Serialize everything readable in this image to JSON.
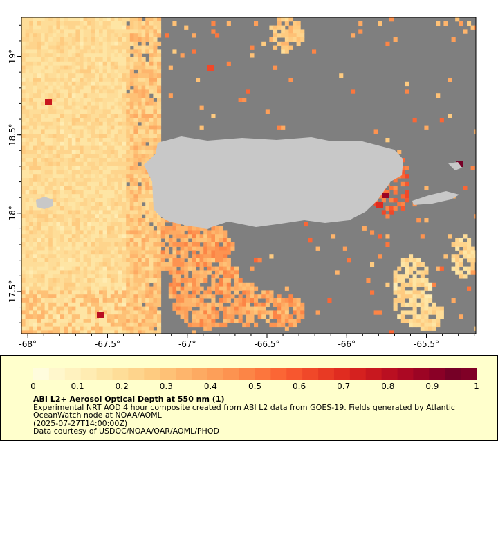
{
  "map": {
    "x_axis": {
      "ticks": [
        {
          "lon": -68.0,
          "label": "-68°"
        },
        {
          "lon": -67.5,
          "label": "-67.5°"
        },
        {
          "lon": -67.0,
          "label": "-67°"
        },
        {
          "lon": -66.5,
          "label": "-66.5°"
        },
        {
          "lon": -66.0,
          "label": "-66°"
        },
        {
          "lon": -65.5,
          "label": "-65.5°"
        }
      ]
    },
    "y_axis": {
      "ticks": [
        {
          "lat": 19.0,
          "label": "19°"
        },
        {
          "lat": 18.5,
          "label": "18.5°"
        },
        {
          "lat": 18.0,
          "label": "18°"
        },
        {
          "lat": 17.5,
          "label": "17.5°"
        }
      ]
    },
    "lon_range": [
      -68.04,
      -65.19
    ],
    "lat_range": [
      17.23,
      19.25
    ],
    "colors": {
      "land": "#c8c8c8",
      "no_data": "#7f7f7f"
    }
  },
  "legend": {
    "colorbar": {
      "min": 0,
      "max": 1,
      "tick_labels": [
        "0",
        "0.1",
        "0.2",
        "0.3",
        "0.4",
        "0.5",
        "0.6",
        "0.7",
        "0.8",
        "0.9",
        "1"
      ],
      "colors": [
        "#fffcdd",
        "#fff7cc",
        "#fff2bf",
        "#ffecb2",
        "#fee5a4",
        "#fedd98",
        "#fed48c",
        "#fecb80",
        "#fec176",
        "#feb56c",
        "#fdaa62",
        "#fd9f59",
        "#fd9350",
        "#fc8546",
        "#fc763d",
        "#fb6635",
        "#f7572f",
        "#f04829",
        "#e83a24",
        "#e02c20",
        "#d5211f",
        "#c8181f",
        "#ba0f21",
        "#ac0823",
        "#9c0424",
        "#8a0026",
        "#760026",
        "#800026"
      ]
    },
    "title": "ABI L2+ Aerosol Optical Depth at 550 nm (1)",
    "description": "Experimental NRT AOD 4 hour composite created from ABI L2 data from GOES-19. Fields generated by Atlantic OceanWatch node at NOAA/AOML",
    "timestamp": "(2025-07-27T14:00:00Z)",
    "credit": "Data courtesy of USDOC/NOAA/OAR/AOML/PHOD"
  }
}
